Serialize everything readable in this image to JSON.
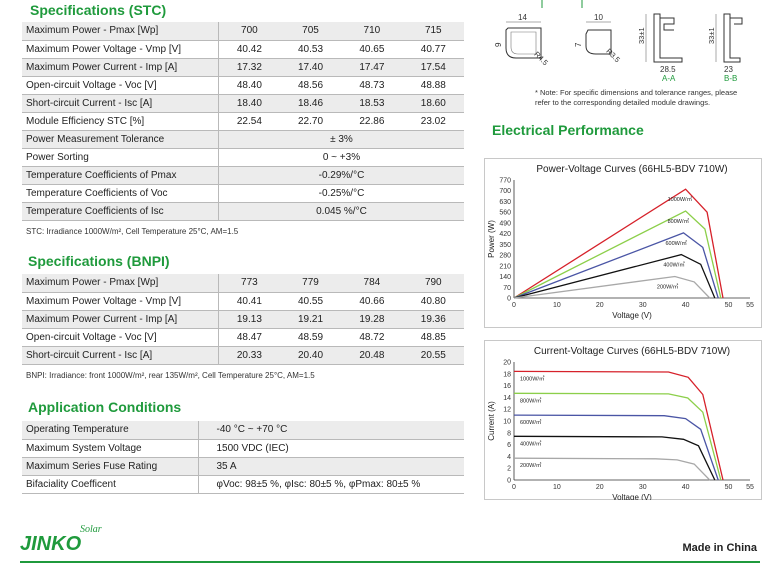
{
  "stc": {
    "title": "Specifications (STC)",
    "rows": [
      {
        "label": "Maximum Power - Pmax [Wp]",
        "values": [
          "700",
          "705",
          "710",
          "715"
        ]
      },
      {
        "label": "Maximum Power Voltage - Vmp [V]",
        "values": [
          "40.42",
          "40.53",
          "40.65",
          "40.77"
        ]
      },
      {
        "label": "Maximum Power Current - Imp [A]",
        "values": [
          "17.32",
          "17.40",
          "17.47",
          "17.54"
        ]
      },
      {
        "label": "Open-circuit Voltage - Voc [V]",
        "values": [
          "48.40",
          "48.56",
          "48.73",
          "48.88"
        ]
      },
      {
        "label": "Short-circuit Current - Isc [A]",
        "values": [
          "18.40",
          "18.46",
          "18.53",
          "18.60"
        ]
      },
      {
        "label": "Module Efficiency STC [%]",
        "values": [
          "22.54",
          "22.70",
          "22.86",
          "23.02"
        ]
      },
      {
        "label": "Power Measurement Tolerance",
        "span": "± 3%"
      },
      {
        "label": "Power Sorting",
        "span": "0 ~ +3%"
      },
      {
        "label": "Temperature Coefficients of Pmax",
        "span": "-0.29%/°C"
      },
      {
        "label": "Temperature Coefficients of Voc",
        "span": "-0.25%/°C"
      },
      {
        "label": "Temperature Coefficients of Isc",
        "span": "0.045 %/°C"
      }
    ],
    "note": "STC: Irradiance 1000W/m², Cell Temperature 25°C, AM=1.5"
  },
  "bnpi": {
    "title": "Specifications (BNPI)",
    "rows": [
      {
        "label": "Maximum Power - Pmax [Wp]",
        "values": [
          "773",
          "779",
          "784",
          "790"
        ]
      },
      {
        "label": "Maximum Power Voltage - Vmp [V]",
        "values": [
          "40.41",
          "40.55",
          "40.66",
          "40.80"
        ]
      },
      {
        "label": "Maximum Power Current - Imp [A]",
        "values": [
          "19.13",
          "19.21",
          "19.28",
          "19.36"
        ]
      },
      {
        "label": "Open-circuit Voltage - Voc [V]",
        "values": [
          "48.47",
          "48.59",
          "48.72",
          "48.85"
        ]
      },
      {
        "label": "Short-circuit Current - Isc [A]",
        "values": [
          "20.33",
          "20.40",
          "20.48",
          "20.55"
        ]
      }
    ],
    "note": "BNPI: Irradiance: front 1000W/m², rear 135W/m², Cell Temperature 25°C, AM=1.5"
  },
  "app": {
    "title": "Application Conditions",
    "rows": [
      {
        "label": "Operating Temperature",
        "value": "-40 °C ~ +70 °C"
      },
      {
        "label": "Maximum System Voltage",
        "value": "1500 VDC (IEC)"
      },
      {
        "label": "Maximum Series Fuse Rating",
        "value": "35 A"
      },
      {
        "label": "Bifaciality Coefficent",
        "value": "φVoc: 98±5 %, φIsc: 80±5 %, φPmax: 80±5 %"
      }
    ]
  },
  "drawing": {
    "dims": [
      "14",
      "10",
      "9",
      "7",
      "R4.5",
      "R3.5",
      "33±1",
      "33±1",
      "28.5",
      "23"
    ],
    "section_labels": [
      "A-A",
      "B-B"
    ],
    "note": "* Note: For specific dimensions and tolerance ranges, please refer to the corresponding detailed module drawings."
  },
  "electrical": {
    "title": "Electrical Performance"
  },
  "chart_data": [
    {
      "type": "line",
      "title": "Power-Voltage Curves (66HL5-BDV 710W)",
      "xlabel": "Voltage (V)",
      "ylabel": "Power (W)",
      "xlim": [
        0,
        55
      ],
      "ylim": [
        0,
        770
      ],
      "xticks": [
        0,
        10,
        20,
        30,
        40,
        50,
        55
      ],
      "yticks": [
        0,
        70,
        140,
        210,
        280,
        350,
        420,
        490,
        560,
        630,
        700,
        770
      ],
      "series": [
        {
          "name": "1000W/㎡",
          "color": "#d6212a",
          "x": [
            0,
            40,
            45,
            48.7
          ],
          "y": [
            0,
            710,
            560,
            0
          ]
        },
        {
          "name": "800W/㎡",
          "color": "#8ccf4a",
          "x": [
            0,
            40,
            44.5,
            48.2
          ],
          "y": [
            0,
            568,
            450,
            0
          ]
        },
        {
          "name": "600W/㎡",
          "color": "#4a55a5",
          "x": [
            0,
            39.5,
            44,
            47.6
          ],
          "y": [
            0,
            425,
            330,
            0
          ]
        },
        {
          "name": "400W/㎡",
          "color": "#111111",
          "x": [
            0,
            39,
            43.5,
            46.8
          ],
          "y": [
            0,
            283,
            220,
            0
          ]
        },
        {
          "name": "200W/㎡",
          "color": "#a8a8a8",
          "x": [
            0,
            37.5,
            42,
            45.6
          ],
          "y": [
            0,
            140,
            105,
            0
          ]
        }
      ]
    },
    {
      "type": "line",
      "title": "Current-Voltage Curves (66HL5-BDV 710W)",
      "xlabel": "Voltage (V)",
      "ylabel": "Current (A)",
      "xlim": [
        0,
        55
      ],
      "ylim": [
        0,
        20
      ],
      "xticks": [
        0,
        10,
        20,
        30,
        40,
        50,
        55
      ],
      "yticks": [
        0,
        2,
        4,
        6,
        8,
        10,
        12,
        14,
        16,
        18,
        20
      ],
      "series": [
        {
          "name": "1000W/㎡",
          "color": "#d6212a",
          "x": [
            0,
            36,
            40.6,
            44,
            48.7
          ],
          "y": [
            18.4,
            18.3,
            17.4,
            14.5,
            0
          ]
        },
        {
          "name": "800W/㎡",
          "color": "#8ccf4a",
          "x": [
            0,
            36,
            40.5,
            44,
            48.2
          ],
          "y": [
            14.7,
            14.6,
            13.9,
            11.5,
            0
          ]
        },
        {
          "name": "600W/㎡",
          "color": "#4a55a5",
          "x": [
            0,
            35,
            40,
            43.5,
            47.6
          ],
          "y": [
            11.0,
            10.9,
            10.4,
            8.6,
            0
          ]
        },
        {
          "name": "400W/㎡",
          "color": "#111111",
          "x": [
            0,
            34.5,
            39.5,
            43,
            46.8
          ],
          "y": [
            7.4,
            7.3,
            6.9,
            5.8,
            0
          ]
        },
        {
          "name": "200W/㎡",
          "color": "#a8a8a8",
          "x": [
            0,
            33,
            38,
            42,
            45.6
          ],
          "y": [
            3.7,
            3.6,
            3.4,
            2.7,
            0
          ]
        }
      ]
    }
  ],
  "footer": {
    "brand": "JINKO",
    "brand_script": "Solar",
    "made": "Made in China"
  },
  "colors": {
    "accent": "#1f9a3c"
  }
}
